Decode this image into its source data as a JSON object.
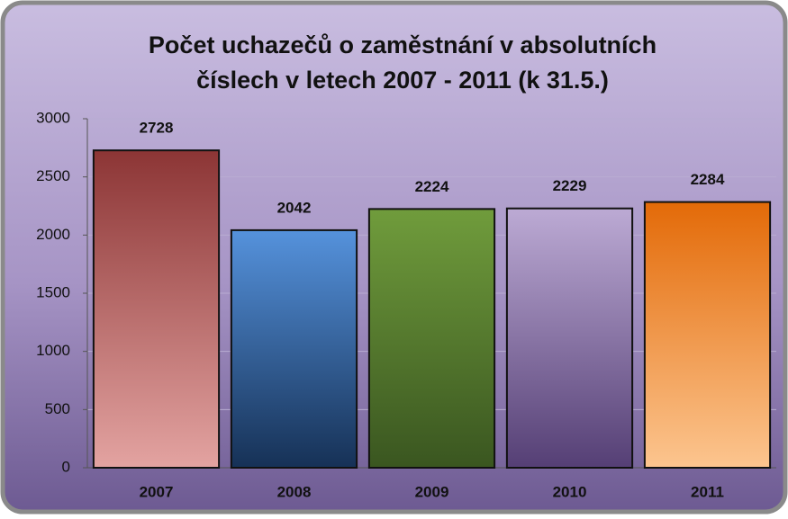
{
  "chart_data": {
    "type": "bar",
    "title": [
      "Počet uchazečů o zaměstnání  v absolutních",
      "číslech  v letech 2007 - 2011 (k 31.5.)"
    ],
    "categories": [
      "2007",
      "2008",
      "2009",
      "2010",
      "2011"
    ],
    "values": [
      2728,
      2042,
      2224,
      2229,
      2284
    ],
    "colors": [
      [
        "#8c3535",
        "#e3a3a1"
      ],
      [
        "#5592dc",
        "#163156"
      ],
      [
        "#709c3c",
        "#3a5620"
      ],
      [
        "#bcaad4",
        "#553f75"
      ],
      [
        "#e36a08",
        "#fcc58f"
      ]
    ],
    "ylim": [
      0,
      3000
    ],
    "yticks": [
      0,
      500,
      1000,
      1500,
      2000,
      2500,
      3000
    ],
    "grid": true
  }
}
